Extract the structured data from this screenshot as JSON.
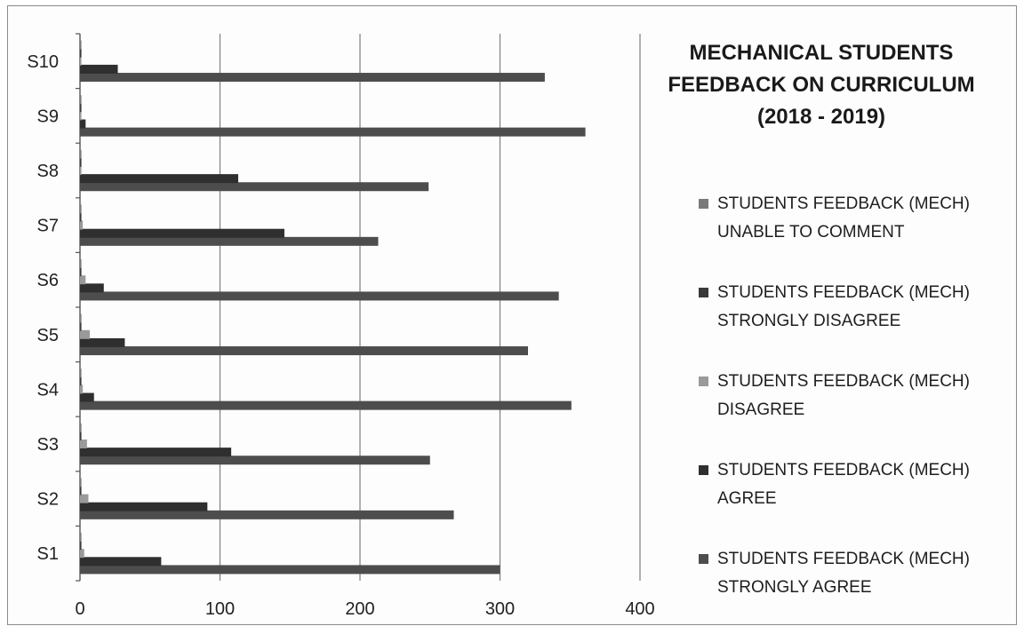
{
  "chart_data": {
    "type": "bar",
    "orientation": "horizontal",
    "title": "MECHANICAL STUDENTS FEEDBACK  ON CURRICULUM (2018 - 2019)",
    "categories": [
      "S1",
      "S2",
      "S3",
      "S4",
      "S5",
      "S6",
      "S7",
      "S8",
      "S9",
      "S10"
    ],
    "xlim": [
      0,
      400
    ],
    "xticks": [
      "0",
      "100",
      "200",
      "300",
      "400"
    ],
    "grid": "vertical",
    "legend_position": "right",
    "series": [
      {
        "name": "STUDENTS FEEDBACK (MECH) STRONGLY AGREE",
        "color": "#4d4d4d",
        "values": [
          300,
          267,
          250,
          351,
          320,
          342,
          213,
          249,
          361,
          332
        ]
      },
      {
        "name": "STUDENTS FEEDBACK (MECH) AGREE",
        "color": "#2f2f2f",
        "values": [
          58,
          91,
          108,
          10,
          32,
          17,
          146,
          113,
          4,
          27
        ]
      },
      {
        "name": "STUDENTS FEEDBACK (MECH) DISAGREE",
        "color": "#9a9a9a",
        "values": [
          3,
          6,
          5,
          2,
          7,
          4,
          2,
          1,
          1,
          1
        ]
      },
      {
        "name": "STUDENTS FEEDBACK (MECH) STRONGLY DISAGREE",
        "color": "#3a3a3a",
        "values": [
          1,
          1,
          1,
          1,
          1,
          1,
          1,
          1,
          1,
          1
        ]
      },
      {
        "name": "STUDENTS FEEDBACK (MECH) UNABLE TO COMMENT",
        "color": "#7a7a7a",
        "values": [
          1,
          1,
          1,
          1,
          1,
          1,
          1,
          1,
          1,
          1
        ]
      }
    ]
  }
}
